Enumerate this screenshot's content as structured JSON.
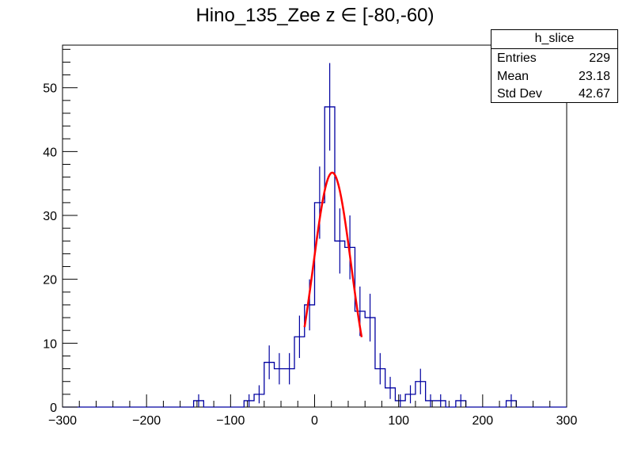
{
  "title": "Hino_135_Zee z  ∈ [-80,-60)",
  "stats": {
    "name": "h_slice",
    "rows": [
      {
        "label": "Entries",
        "value": "229"
      },
      {
        "label": "Mean",
        "value": "23.18"
      },
      {
        "label": "Std Dev",
        "value": "42.67"
      }
    ]
  },
  "chart_data": {
    "type": "bar",
    "style": "step-histogram-with-errors",
    "xlim": [
      -300,
      300
    ],
    "ylim": [
      0,
      56.66
    ],
    "bin_width": 12,
    "bin_low_edges": [
      -300,
      -288,
      -276,
      -264,
      -252,
      -240,
      -228,
      -216,
      -204,
      -192,
      -180,
      -168,
      -156,
      -144,
      -132,
      -120,
      -108,
      -96,
      -84,
      -72,
      -60,
      -48,
      -36,
      -24,
      -12,
      0,
      12,
      24,
      36,
      48,
      60,
      72,
      84,
      96,
      108,
      120,
      132,
      144,
      156,
      168,
      180,
      192,
      204,
      216,
      228,
      240,
      252,
      264,
      276,
      288
    ],
    "values": [
      0,
      0,
      0,
      0,
      0,
      0,
      0,
      0,
      0,
      0,
      0,
      0,
      0,
      1,
      0,
      0,
      0,
      0,
      1,
      2,
      7,
      6,
      6,
      11,
      16,
      32,
      47,
      26,
      25,
      15,
      14,
      6,
      3,
      1,
      2,
      4,
      1,
      1,
      0,
      1,
      0,
      0,
      0,
      0,
      1,
      0,
      0,
      0,
      0,
      0
    ],
    "errors": "sqrt(N)",
    "x_ticks": [
      -300,
      -200,
      -100,
      0,
      100,
      200,
      300
    ],
    "y_ticks": [
      0,
      10,
      20,
      30,
      40,
      50
    ],
    "fit": {
      "type": "gaussian",
      "constant": 36.7,
      "mean": 21,
      "sigma": 22.5,
      "range": [
        -12,
        56
      ],
      "color": "#ff0000"
    },
    "hist_color": "#0000a0",
    "grid": false
  }
}
